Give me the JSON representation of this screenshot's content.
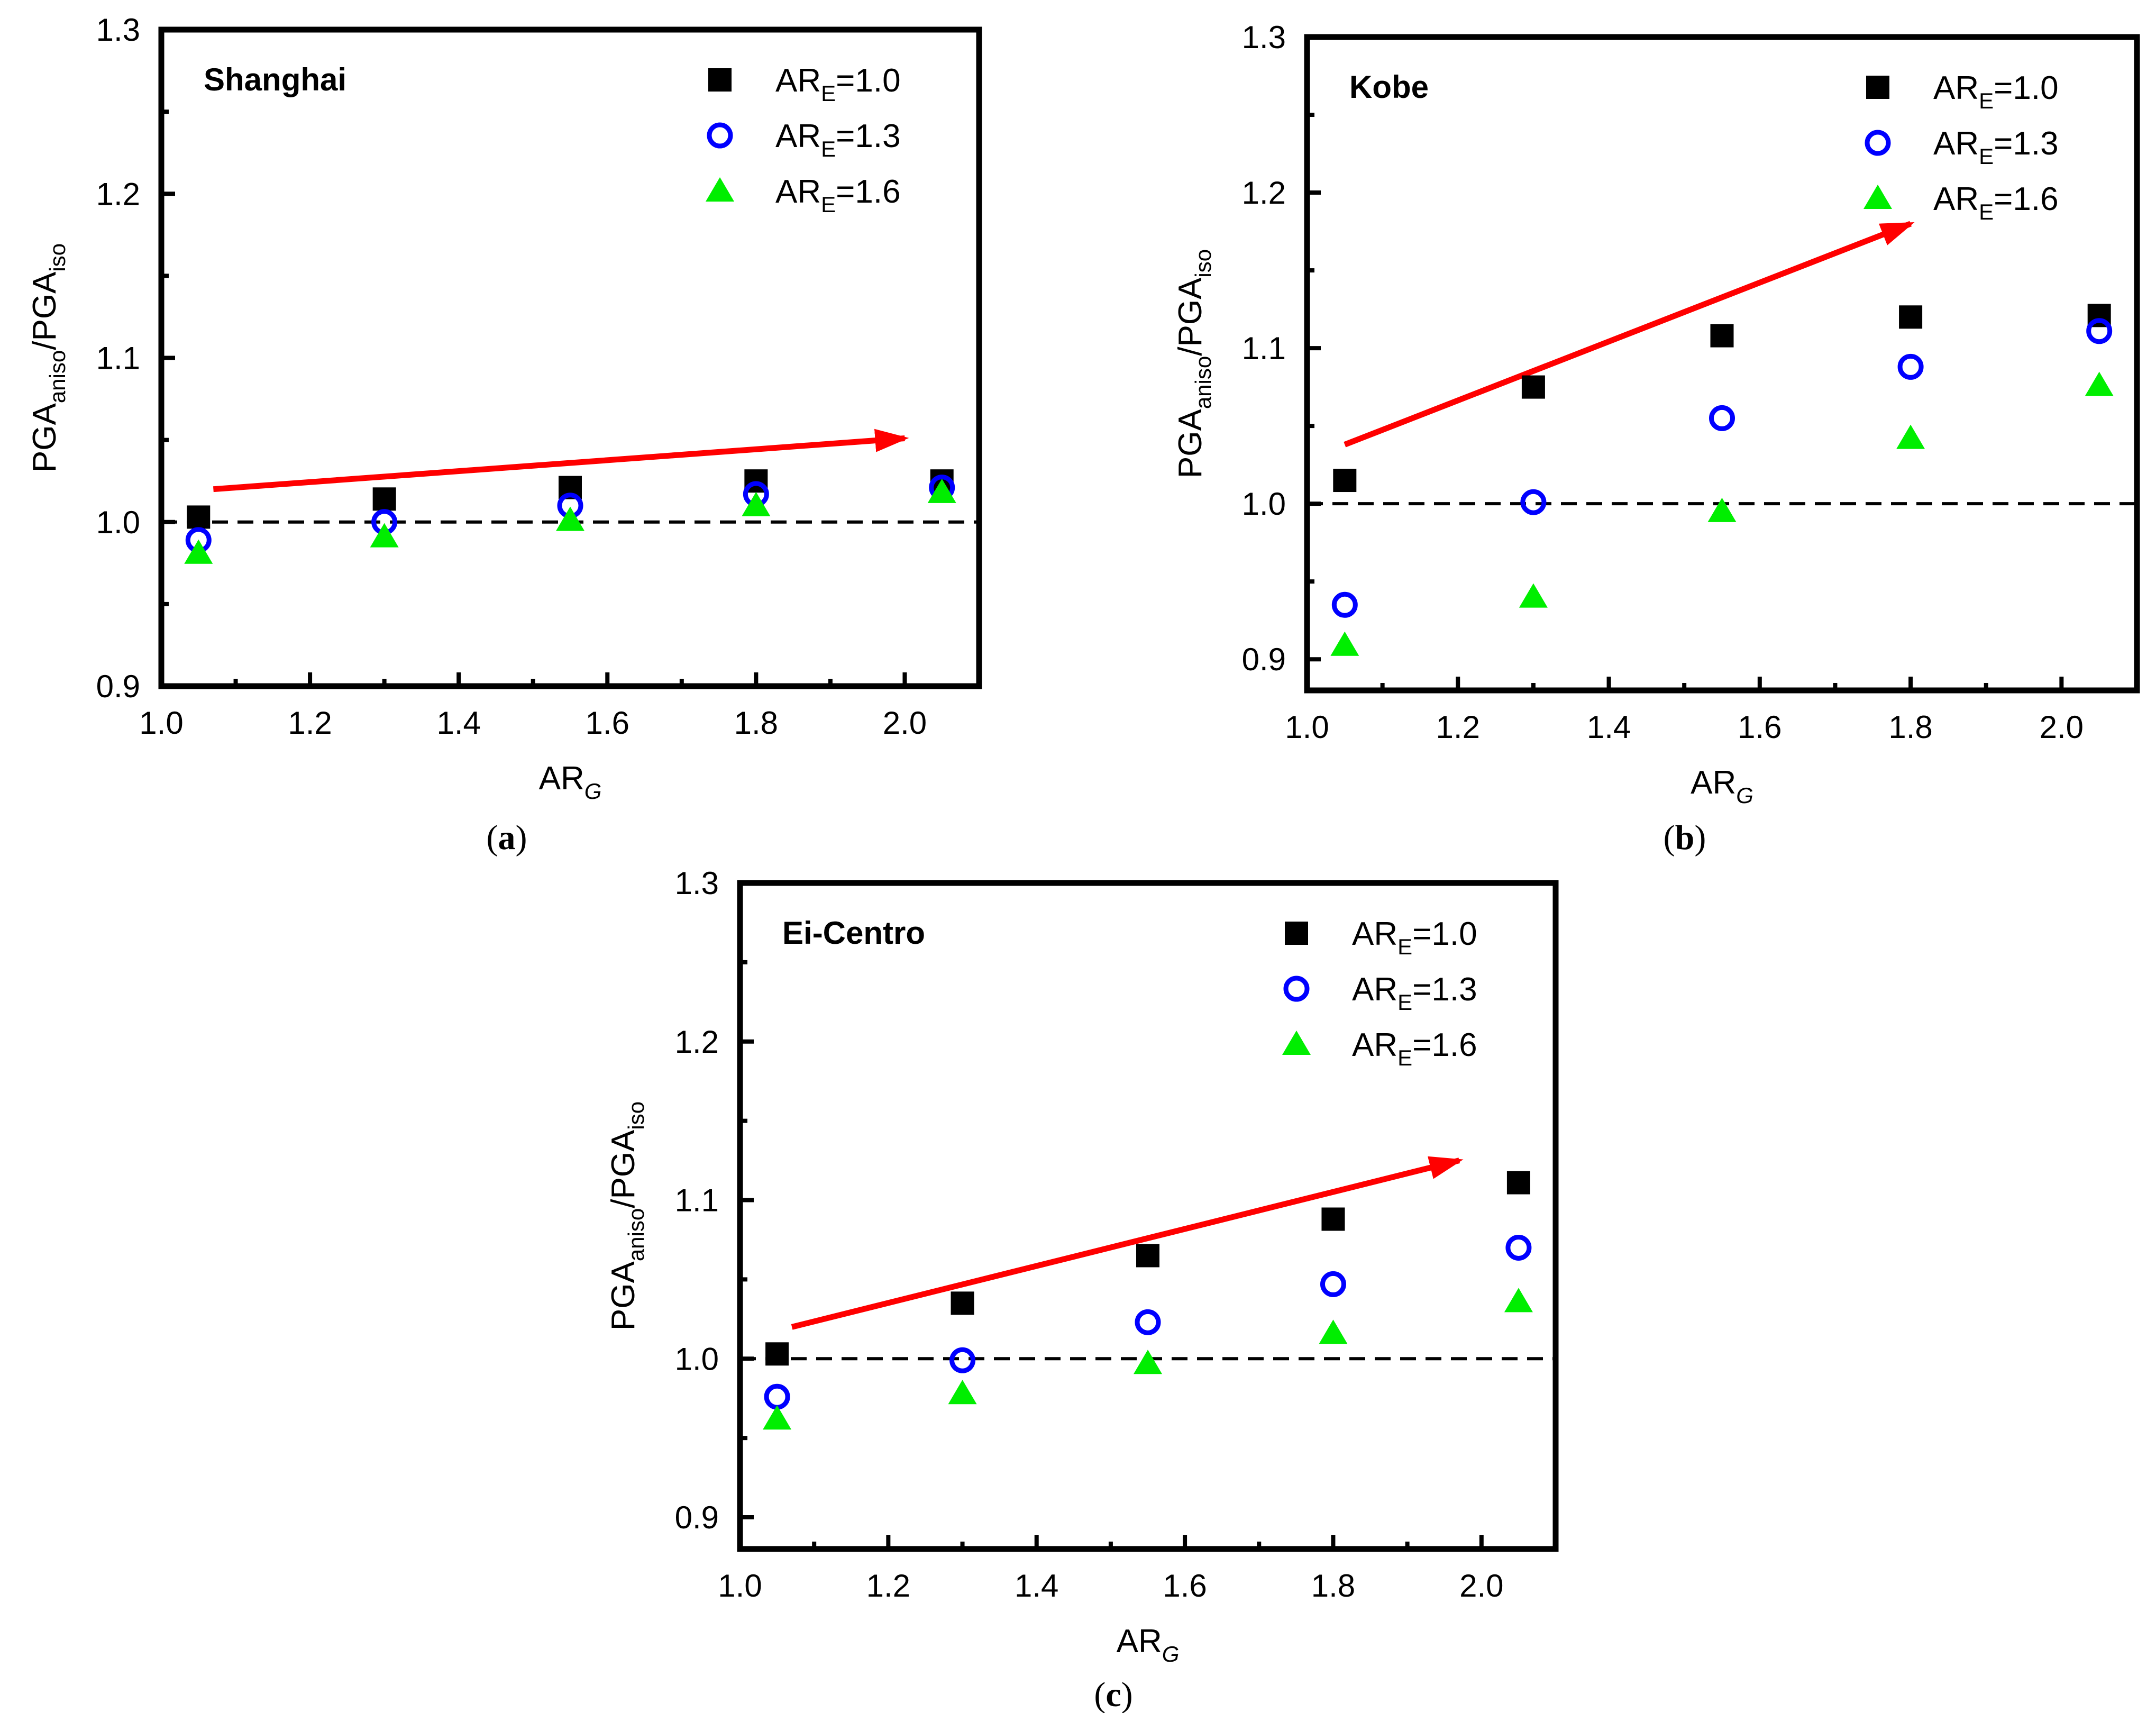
{
  "colors": {
    "series_black": "#000000",
    "series_blue": "#0000ff",
    "series_green": "#00ee00",
    "trend_arrow": "#ff0000",
    "reference_line": "#000000"
  },
  "chart_data": [
    {
      "type": "scatter",
      "caption_letter": "a",
      "title": "Shanghai",
      "xlabel_main": "AR",
      "xlabel_sub": "G",
      "ylabel_main1": "PGA",
      "ylabel_sub1": "aniso",
      "ylabel_sep": "/PGA",
      "ylabel_sub2": "iso",
      "xlim": [
        1.0,
        2.1
      ],
      "ylim": [
        0.9,
        1.3
      ],
      "xticks": [
        "1.0",
        "1.2",
        "1.4",
        "1.6",
        "1.8",
        "2.0"
      ],
      "yticks": [
        "0.9",
        "1.0",
        "1.1",
        "1.2",
        "1.3"
      ],
      "reference_y": 1.0,
      "trend_arrow": {
        "from": [
          1.07,
          1.02
        ],
        "to": [
          2.0,
          1.051
        ]
      },
      "x": [
        1.05,
        1.3,
        1.55,
        1.8,
        2.05
      ],
      "series": [
        {
          "name_main": "AR",
          "name_sub": "E",
          "name_tail": "=1.0",
          "marker": "square",
          "values": [
            1.003,
            1.014,
            1.021,
            1.025,
            1.025
          ]
        },
        {
          "name_main": "AR",
          "name_sub": "E",
          "name_tail": "=1.3",
          "marker": "circle",
          "values": [
            0.989,
            1.0,
            1.01,
            1.017,
            1.021
          ]
        },
        {
          "name_main": "AR",
          "name_sub": "E",
          "name_tail": "=1.6",
          "marker": "triangle",
          "values": [
            0.981,
            0.991,
            1.001,
            1.01,
            1.018
          ]
        }
      ]
    },
    {
      "type": "scatter",
      "caption_letter": "b",
      "title": "Kobe",
      "xlabel_main": "AR",
      "xlabel_sub": "G",
      "ylabel_main1": "PGA",
      "ylabel_sub1": "aniso",
      "ylabel_sep": "/PGA",
      "ylabel_sub2": "iso",
      "xlim": [
        1.0,
        2.1
      ],
      "ylim": [
        0.88,
        1.3
      ],
      "xticks": [
        "1.0",
        "1.2",
        "1.4",
        "1.6",
        "1.8",
        "2.0"
      ],
      "yticks": [
        "0.9",
        "1.0",
        "1.1",
        "1.2",
        "1.3"
      ],
      "reference_y": 1.0,
      "trend_arrow": {
        "from": [
          1.05,
          1.038
        ],
        "to": [
          1.8,
          1.18
        ]
      },
      "x": [
        1.05,
        1.3,
        1.55,
        1.8,
        2.05
      ],
      "series": [
        {
          "name_main": "AR",
          "name_sub": "E",
          "name_tail": "=1.0",
          "marker": "square",
          "values": [
            1.015,
            1.075,
            1.108,
            1.12,
            1.121
          ]
        },
        {
          "name_main": "AR",
          "name_sub": "E",
          "name_tail": "=1.3",
          "marker": "circle",
          "values": [
            0.935,
            1.001,
            1.055,
            1.088,
            1.111
          ]
        },
        {
          "name_main": "AR",
          "name_sub": "E",
          "name_tail": "=1.6",
          "marker": "triangle",
          "values": [
            0.909,
            0.94,
            0.995,
            1.042,
            1.076
          ]
        }
      ]
    },
    {
      "type": "scatter",
      "caption_letter": "c",
      "title": "Ei-Centro",
      "xlabel_main": "AR",
      "xlabel_sub": "G",
      "ylabel_main1": "PGA",
      "ylabel_sub1": "aniso",
      "ylabel_sep": "/PGA",
      "ylabel_sub2": "iso",
      "xlim": [
        1.0,
        2.1
      ],
      "ylim": [
        0.88,
        1.3
      ],
      "xticks": [
        "1.0",
        "1.2",
        "1.4",
        "1.6",
        "1.8",
        "2.0"
      ],
      "yticks": [
        "0.9",
        "1.0",
        "1.1",
        "1.2",
        "1.3"
      ],
      "reference_y": 1.0,
      "trend_arrow": {
        "from": [
          1.07,
          1.02
        ],
        "to": [
          1.97,
          1.125
        ]
      },
      "x": [
        1.05,
        1.3,
        1.55,
        1.8,
        2.05
      ],
      "series": [
        {
          "name_main": "AR",
          "name_sub": "E",
          "name_tail": "=1.0",
          "marker": "square",
          "values": [
            1.003,
            1.035,
            1.065,
            1.088,
            1.111
          ]
        },
        {
          "name_main": "AR",
          "name_sub": "E",
          "name_tail": "=1.3",
          "marker": "circle",
          "values": [
            0.976,
            0.999,
            1.023,
            1.047,
            1.07
          ]
        },
        {
          "name_main": "AR",
          "name_sub": "E",
          "name_tail": "=1.6",
          "marker": "triangle",
          "values": [
            0.962,
            0.978,
            0.997,
            1.016,
            1.036
          ]
        }
      ]
    }
  ]
}
